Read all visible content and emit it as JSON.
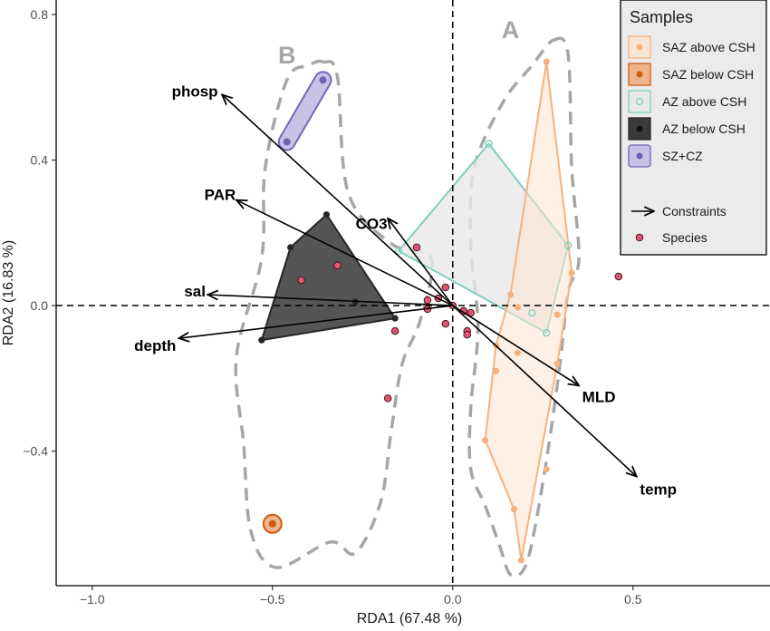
{
  "chart_data": {
    "type": "scatter",
    "subtype": "RDA biplot",
    "xlabel": "RDA1 (67.48 %)",
    "ylabel": "RDA2 (16.83 %)",
    "xlim": [
      -1.1,
      0.88
    ],
    "ylim": [
      -0.77,
      0.84
    ],
    "x_ticks": [
      {
        "v": -1.0,
        "label": "−1.0"
      },
      {
        "v": -0.5,
        "label": "−0.5"
      },
      {
        "v": 0.0,
        "label": "0.0"
      },
      {
        "v": 0.5,
        "label": "0.5"
      }
    ],
    "y_ticks": [
      {
        "v": -0.4,
        "label": "−0.4"
      },
      {
        "v": 0.0,
        "label": "0.0"
      },
      {
        "v": 0.4,
        "label": "0.4"
      },
      {
        "v": 0.8,
        "label": "0.8"
      }
    ],
    "grid": false,
    "legend_position": "top-right",
    "legend_title": "Samples",
    "reference_lines": {
      "x": 0,
      "y": 0,
      "style": "dashed"
    },
    "groups": [
      {
        "label": "A",
        "label_pos": [
          0.16,
          0.76
        ]
      },
      {
        "label": "B",
        "label_pos": [
          -0.46,
          0.69
        ]
      }
    ],
    "group_outlines": [
      {
        "group": "A",
        "points": [
          [
            0.28,
            0.73
          ],
          [
            0.32,
            0.69
          ],
          [
            0.33,
            0.38
          ],
          [
            0.35,
            0.13
          ],
          [
            0.32,
            0.04
          ],
          [
            0.3,
            -0.14
          ],
          [
            0.27,
            -0.36
          ],
          [
            0.23,
            -0.6
          ],
          [
            0.2,
            -0.72
          ],
          [
            0.16,
            -0.74
          ],
          [
            0.13,
            -0.66
          ],
          [
            0.09,
            -0.55
          ],
          [
            0.05,
            -0.45
          ],
          [
            0.05,
            -0.28
          ],
          [
            0.07,
            -0.06
          ],
          [
            0.05,
            0.17
          ],
          [
            0.06,
            0.38
          ],
          [
            0.14,
            0.56
          ],
          [
            0.22,
            0.66
          ]
        ]
      },
      {
        "group": "B",
        "points": [
          [
            -0.36,
            0.67
          ],
          [
            -0.32,
            0.63
          ],
          [
            -0.29,
            0.31
          ],
          [
            -0.17,
            0.17
          ],
          [
            -0.06,
            0.13
          ],
          [
            -0.09,
            -0.04
          ],
          [
            -0.14,
            -0.16
          ],
          [
            -0.17,
            -0.34
          ],
          [
            -0.2,
            -0.54
          ],
          [
            -0.27,
            -0.68
          ],
          [
            -0.34,
            -0.65
          ],
          [
            -0.49,
            -0.72
          ],
          [
            -0.56,
            -0.62
          ],
          [
            -0.58,
            -0.38
          ],
          [
            -0.6,
            -0.14
          ],
          [
            -0.53,
            0.13
          ],
          [
            -0.52,
            0.38
          ],
          [
            -0.46,
            0.62
          ],
          [
            -0.4,
            0.66
          ]
        ]
      }
    ],
    "series": [
      {
        "name": "SAZ above CSH",
        "symbol": "filled",
        "color": "#f6b27e",
        "fill": "#fde3cf",
        "stroke": "#f6b27e",
        "points": [
          [
            0.26,
            0.67
          ],
          [
            0.33,
            0.09
          ],
          [
            0.16,
            0.03
          ],
          [
            0.18,
            -0.005
          ],
          [
            0.29,
            -0.025
          ],
          [
            0.12,
            -0.11
          ],
          [
            0.18,
            -0.13
          ],
          [
            0.29,
            -0.16
          ],
          [
            0.12,
            -0.18
          ],
          [
            0.09,
            -0.37
          ],
          [
            0.26,
            -0.45
          ],
          [
            0.17,
            -0.56
          ],
          [
            0.19,
            -0.7
          ]
        ],
        "hull": [
          [
            0.26,
            0.67
          ],
          [
            0.33,
            0.09
          ],
          [
            0.29,
            -0.16
          ],
          [
            0.19,
            -0.7
          ],
          [
            0.17,
            -0.56
          ],
          [
            0.09,
            -0.37
          ],
          [
            0.12,
            -0.11
          ],
          [
            0.16,
            0.03
          ]
        ]
      },
      {
        "name": "SAZ below CSH",
        "symbol": "filled",
        "color": "#cc5a14",
        "fill": "#efb48a",
        "stroke": "#cc5a14",
        "points": [
          [
            -0.5,
            -0.6
          ]
        ],
        "hull": []
      },
      {
        "name": "AZ above CSH",
        "symbol": "open",
        "color": "#7fcfc0",
        "fill": "#e9e9e9",
        "stroke": "#7fcfc0",
        "points": [
          [
            0.1,
            0.445
          ],
          [
            0.32,
            0.165
          ],
          [
            -0.15,
            0.15
          ],
          [
            0.22,
            -0.02
          ],
          [
            0.26,
            -0.075
          ]
        ],
        "hull": [
          [
            0.1,
            0.445
          ],
          [
            0.32,
            0.165
          ],
          [
            0.26,
            -0.075
          ],
          [
            -0.15,
            0.15
          ]
        ]
      },
      {
        "name": "AZ below CSH",
        "symbol": "filled",
        "color": "#262626",
        "fill": "#555555",
        "stroke": "#262626",
        "points": [
          [
            -0.35,
            0.25
          ],
          [
            -0.45,
            0.16
          ],
          [
            -0.27,
            0.01
          ],
          [
            -0.16,
            -0.035
          ],
          [
            -0.53,
            -0.095
          ]
        ],
        "hull": [
          [
            -0.35,
            0.25
          ],
          [
            -0.16,
            -0.035
          ],
          [
            -0.53,
            -0.095
          ],
          [
            -0.45,
            0.16
          ]
        ]
      },
      {
        "name": "SZ+CZ",
        "symbol": "filled",
        "color": "#6c63b4",
        "fill": "#c7c3e6",
        "stroke": "#6c63b4",
        "points": [
          [
            -0.36,
            0.62
          ],
          [
            -0.46,
            0.45
          ]
        ],
        "hull": [
          [
            -0.36,
            0.62
          ],
          [
            -0.46,
            0.45
          ]
        ]
      }
    ],
    "species": {
      "name": "Species",
      "color": "#e2536f",
      "points": [
        [
          -0.42,
          0.07
        ],
        [
          -0.32,
          0.11
        ],
        [
          -0.18,
          -0.255
        ],
        [
          -0.16,
          -0.07
        ],
        [
          -0.1,
          0.16
        ],
        [
          -0.07,
          0.015
        ],
        [
          -0.07,
          -0.01
        ],
        [
          -0.04,
          0.02
        ],
        [
          -0.02,
          0.05
        ],
        [
          -0.02,
          -0.05
        ],
        [
          0.0,
          0.0
        ],
        [
          0.03,
          -0.015
        ],
        [
          0.04,
          -0.07
        ],
        [
          0.05,
          -0.02
        ],
        [
          0.04,
          -0.08
        ],
        [
          0.46,
          0.08
        ]
      ]
    },
    "constraints": {
      "name": "Constraints",
      "vectors": [
        {
          "label": "phosp",
          "x": -0.64,
          "y": 0.58
        },
        {
          "label": "PAR",
          "x": -0.6,
          "y": 0.29
        },
        {
          "label": "CO3",
          "x": -0.18,
          "y": 0.24
        },
        {
          "label": "sal",
          "x": -0.68,
          "y": 0.03
        },
        {
          "label": "depth",
          "x": -0.76,
          "y": -0.09
        },
        {
          "label": "MLD",
          "x": 0.35,
          "y": -0.22
        },
        {
          "label": "temp",
          "x": 0.51,
          "y": -0.47
        }
      ]
    }
  }
}
